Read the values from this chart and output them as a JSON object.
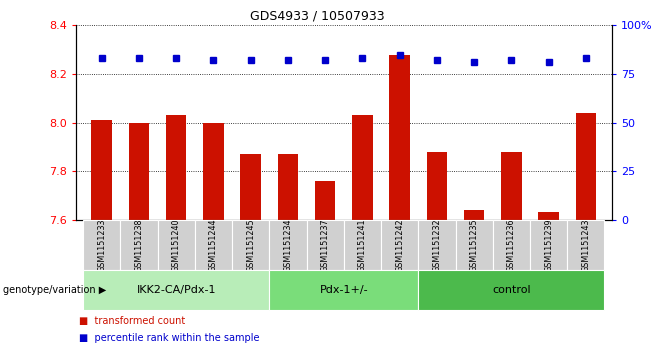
{
  "title": "GDS4933 / 10507933",
  "samples": [
    "GSM1151233",
    "GSM1151238",
    "GSM1151240",
    "GSM1151244",
    "GSM1151245",
    "GSM1151234",
    "GSM1151237",
    "GSM1151241",
    "GSM1151242",
    "GSM1151232",
    "GSM1151235",
    "GSM1151236",
    "GSM1151239",
    "GSM1151243"
  ],
  "red_values": [
    8.01,
    8.0,
    8.03,
    8.0,
    7.87,
    7.87,
    7.76,
    8.03,
    8.28,
    7.88,
    7.64,
    7.88,
    7.63,
    8.04
  ],
  "blue_values": [
    83,
    83,
    83,
    82,
    82,
    82,
    82,
    83,
    85,
    82,
    81,
    82,
    81,
    83
  ],
  "groups": [
    {
      "label": "IKK2-CA/Pdx-1",
      "start": 0,
      "end": 4,
      "color": "#b8edb8"
    },
    {
      "label": "Pdx-1+/-",
      "start": 5,
      "end": 8,
      "color": "#7add7a"
    },
    {
      "label": "control",
      "start": 9,
      "end": 13,
      "color": "#4cba4c"
    }
  ],
  "ylim_left": [
    7.6,
    8.4
  ],
  "ylim_right": [
    0,
    100
  ],
  "yticks_left": [
    7.6,
    7.8,
    8.0,
    8.2,
    8.4
  ],
  "yticks_right": [
    0,
    25,
    50,
    75,
    100
  ],
  "ytick_labels_right": [
    "0",
    "25",
    "50",
    "75",
    "100%"
  ],
  "bar_color": "#cc1100",
  "dot_color": "#0000cc",
  "bar_bottom": 7.6,
  "legend_red": "transformed count",
  "legend_blue": "percentile rank within the sample",
  "group_label": "genotype/variation"
}
